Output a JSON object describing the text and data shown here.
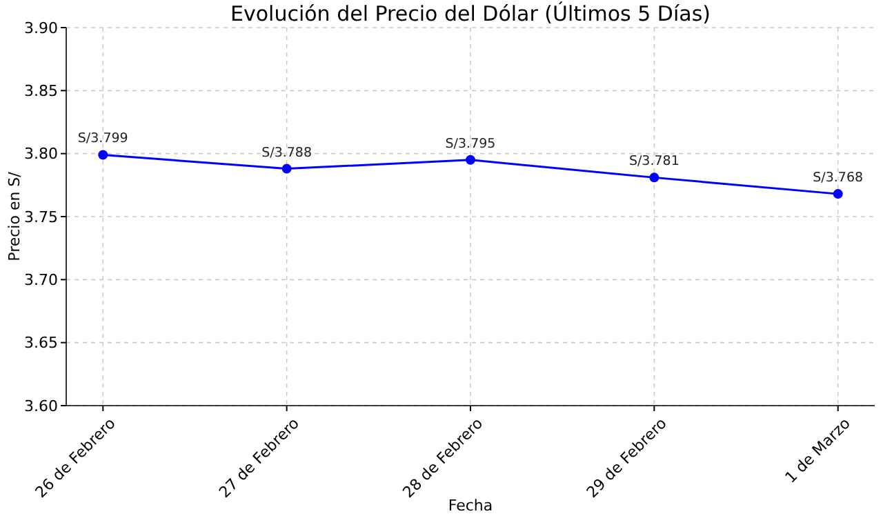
{
  "chart_data": {
    "type": "line",
    "title": "Evolución del Precio del Dólar (Últimos 5 Días)",
    "xlabel": "Fecha",
    "ylabel": "Precio en S/",
    "categories": [
      "26 de Febrero",
      "27 de Febrero",
      "28 de Febrero",
      "29 de Febrero",
      "1 de Marzo"
    ],
    "series": [
      {
        "color": "#0000ff",
        "values": [
          3.799,
          3.788,
          3.795,
          3.781,
          3.768
        ],
        "value_labels": [
          "S/3.799",
          "S/3.788",
          "S/3.795",
          "S/3.781",
          "S/3.768"
        ]
      }
    ],
    "ylim": [
      3.6,
      3.9
    ],
    "yticks": [
      {
        "value": 3.6,
        "label": "3.60"
      },
      {
        "value": 3.65,
        "label": "3.65"
      },
      {
        "value": 3.7,
        "label": "3.70"
      },
      {
        "value": 3.75,
        "label": "3.75"
      },
      {
        "value": 3.8,
        "label": "3.80"
      },
      {
        "value": 3.85,
        "label": "3.85"
      },
      {
        "value": 3.9,
        "label": "3.90"
      }
    ],
    "grid": true,
    "marker": "circle",
    "line_style": "solid"
  }
}
